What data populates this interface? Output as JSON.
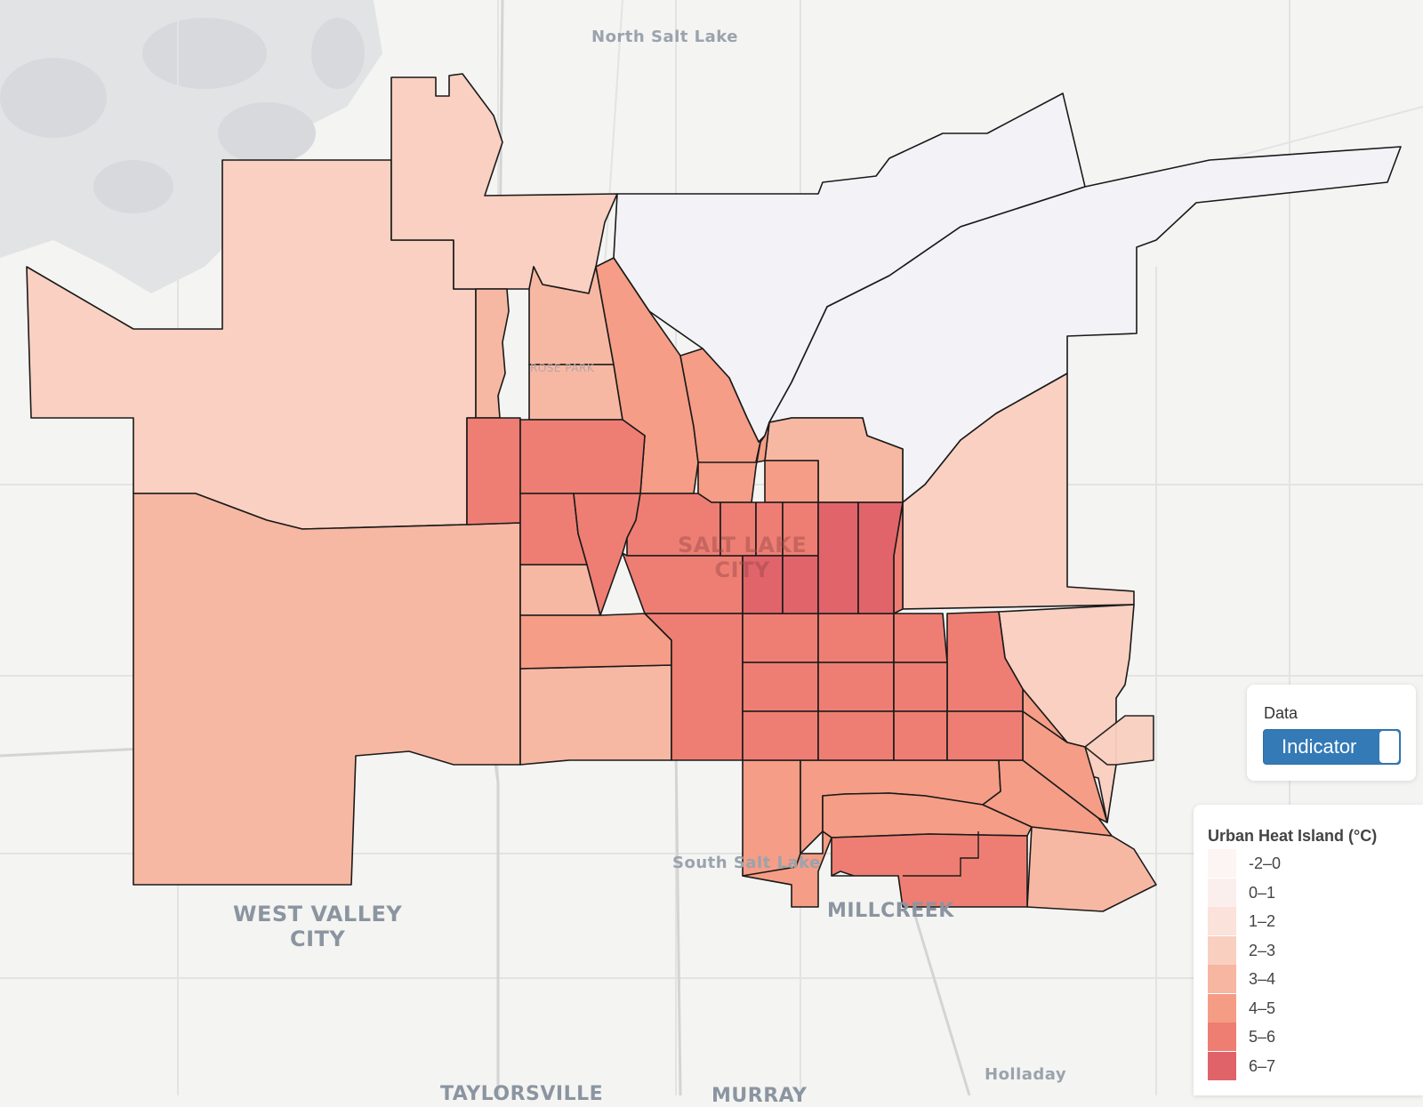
{
  "places": {
    "north_salt_lake": "North Salt Lake",
    "rose_park": "ROSE PARK",
    "salt_lake_city": [
      "SALT LAKE",
      "CITY"
    ],
    "west_valley_city": [
      "WEST VALLEY",
      "CITY"
    ],
    "south_salt_lake": "South Salt Lake",
    "millcreek": "MILLCREEK",
    "holladay": "Holladay",
    "taylorsville": "TAYLORSVILLE",
    "murray": "MURRAY"
  },
  "data_control": {
    "title": "Data",
    "toggle_label": "Indicator",
    "toggle_on": true
  },
  "legend": {
    "title": "Urban Heat Island (°C)",
    "items": [
      {
        "label": "-2–0",
        "color": "#fdf5f3"
      },
      {
        "label": "0–1",
        "color": "#fbefed"
      },
      {
        "label": "1–2",
        "color": "#fbe2da"
      },
      {
        "label": "2–3",
        "color": "#f9cfc0"
      },
      {
        "label": "3–4",
        "color": "#f7b6a1"
      },
      {
        "label": "4–5",
        "color": "#f59c85"
      },
      {
        "label": "5–6",
        "color": "#ee7d72"
      },
      {
        "label": "6–7",
        "color": "#e1636a"
      }
    ]
  },
  "tracts_by_class": {
    "-2–0": 2,
    "2–3": 3,
    "3–4": 8,
    "4–5": 14,
    "5–6": 24,
    "6–7": 4
  }
}
